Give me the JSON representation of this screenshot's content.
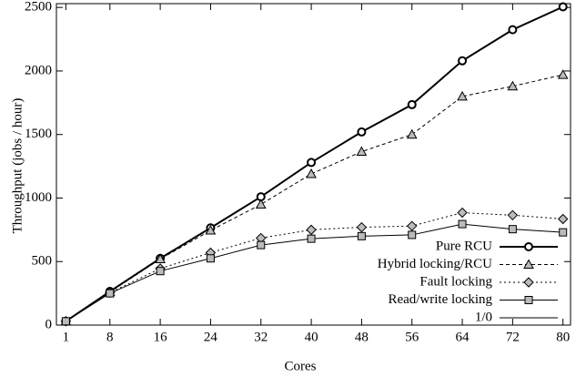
{
  "chart_data": {
    "type": "line",
    "x_label": "Cores",
    "y_label": "Throughput (jobs / hour)",
    "x": [
      1,
      8,
      16,
      24,
      32,
      40,
      48,
      56,
      64,
      72,
      80
    ],
    "xlim": [
      -0.5,
      81.2
    ],
    "xticks": [
      1,
      8,
      16,
      24,
      32,
      40,
      48,
      56,
      64,
      72,
      80
    ],
    "ylim": [
      0,
      2530
    ],
    "yticks": [
      0,
      500,
      1000,
      1500,
      2000,
      2500
    ],
    "legend": "lower right",
    "series": [
      {
        "name": "Pure RCU",
        "color": "#000000",
        "marker": "circle",
        "dash": "solid-thick",
        "values": [
          30,
          265,
          525,
          765,
          1010,
          1280,
          1520,
          1735,
          2080,
          2325,
          2505
        ]
      },
      {
        "name": "Hybrid locking/RCU",
        "color": "#000000",
        "marker": "triangle",
        "dash": "dashed",
        "values": [
          30,
          260,
          520,
          745,
          950,
          1190,
          1365,
          1500,
          1800,
          1880,
          1970
        ]
      },
      {
        "name": "Fault locking",
        "color": "#000000",
        "marker": "diamond",
        "dash": "dotted",
        "values": [
          30,
          255,
          445,
          570,
          685,
          750,
          770,
          780,
          885,
          865,
          835
        ]
      },
      {
        "name": "Read/write locking",
        "color": "#000000",
        "marker": "square",
        "dash": "solid",
        "values": [
          30,
          250,
          425,
          525,
          630,
          680,
          700,
          710,
          795,
          755,
          730
        ]
      },
      {
        "name": "1/0",
        "color": "#000000",
        "marker": "none",
        "dash": "solid",
        "values": [
          null,
          null,
          null,
          null,
          null,
          null,
          null,
          null,
          null,
          null,
          null
        ]
      }
    ]
  }
}
